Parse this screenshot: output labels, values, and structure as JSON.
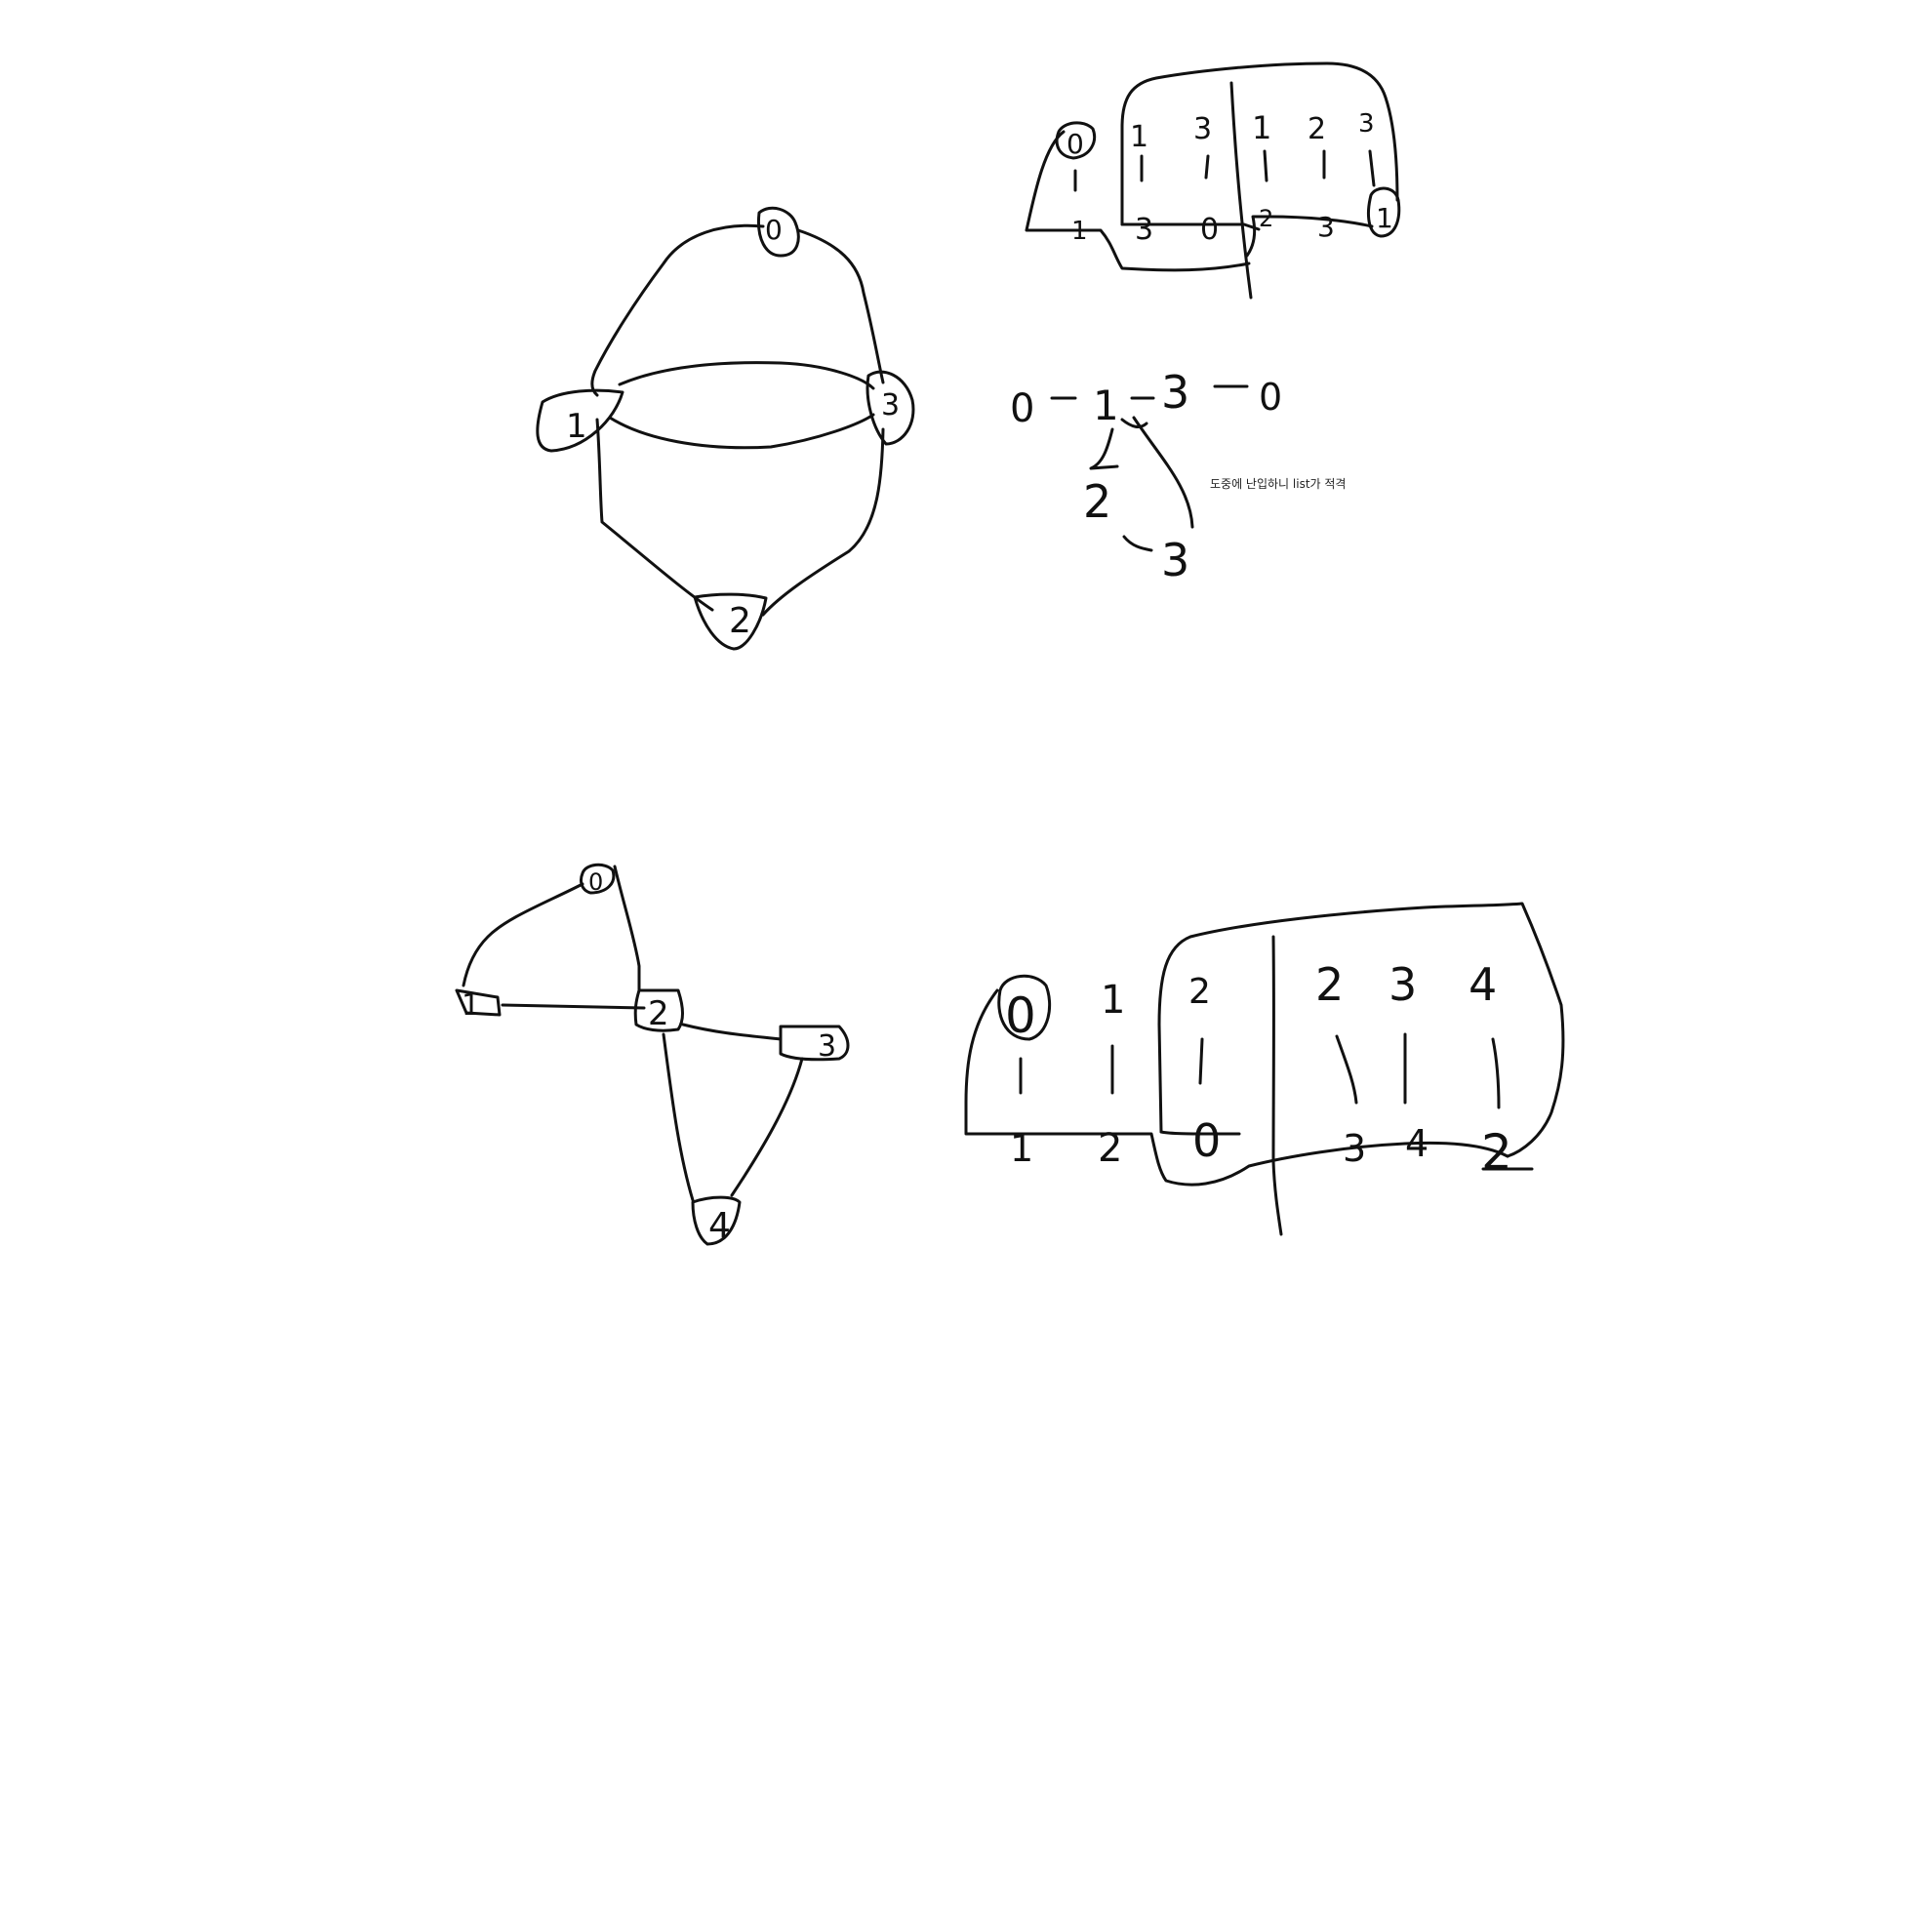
{
  "figure1": {
    "nodes": [
      "0",
      "1",
      "3",
      "2"
    ],
    "table_top": [
      "1",
      "3",
      "1",
      "2",
      "3"
    ],
    "table_bottom": [
      "1",
      "3",
      "0",
      "2",
      "3"
    ],
    "table_left_node": "0",
    "table_right_node": "1",
    "path": [
      "0",
      "1",
      "3",
      "0"
    ],
    "inserted": [
      "2",
      "3"
    ],
    "note": "도중에 난입하니 list가 적격"
  },
  "figure2": {
    "nodes": [
      "0",
      "1",
      "2",
      "3",
      "4"
    ],
    "table_top": [
      "1",
      "2",
      "2",
      "3",
      "4"
    ],
    "table_bottom": [
      "1",
      "2",
      "0",
      "3",
      "4",
      "2"
    ],
    "table_left_node": "0"
  }
}
